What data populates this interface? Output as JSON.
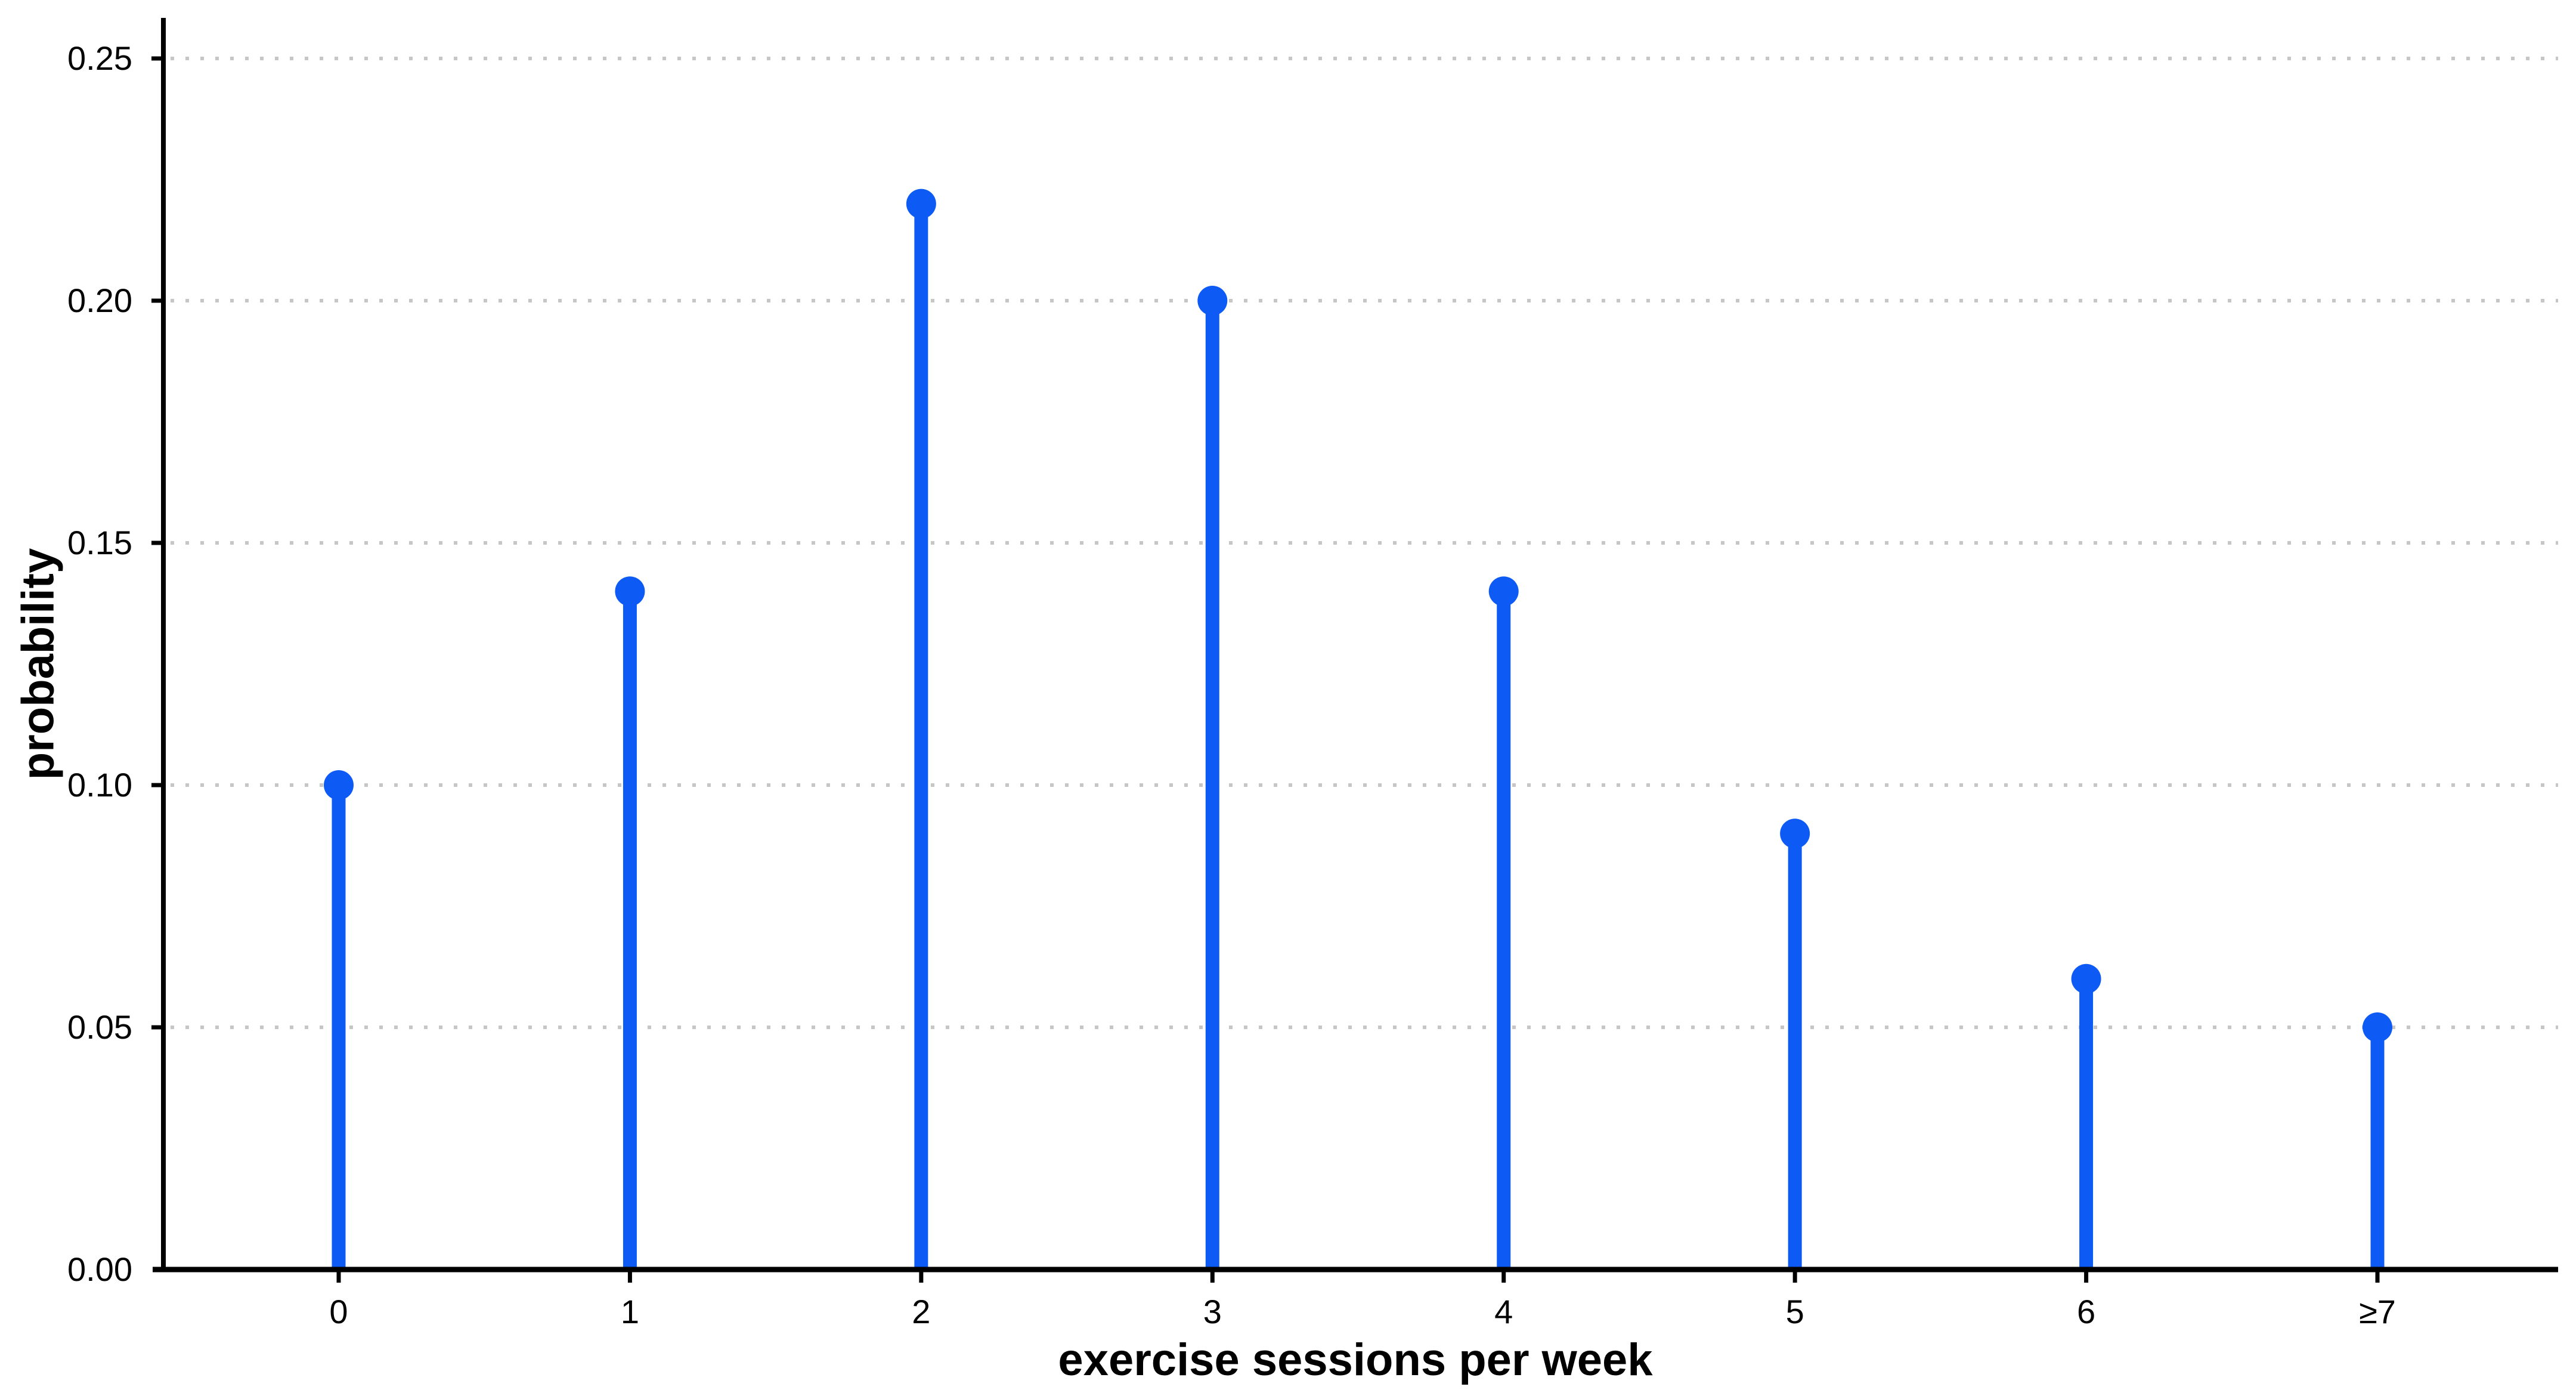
{
  "chart_data": {
    "type": "stem",
    "title": "",
    "xlabel": "exercise sessions per week",
    "ylabel": "probability",
    "categories": [
      "0",
      "1",
      "2",
      "3",
      "4",
      "5",
      "6",
      "≥7"
    ],
    "values": [
      0.1,
      0.14,
      0.22,
      0.2,
      0.14,
      0.09,
      0.06,
      0.05
    ],
    "ylim": [
      0,
      0.25
    ],
    "yticks": [
      0.0,
      0.05,
      0.1,
      0.15,
      0.2,
      0.25
    ],
    "ytick_labels": [
      "0.00",
      "0.05",
      "0.10",
      "0.15",
      "0.20",
      "0.25"
    ],
    "grid": "horizontal-dotted",
    "legend": "none",
    "colors": {
      "stem": "#0d5af5",
      "marker": "#0d5af5",
      "axis": "#000000",
      "gridline": "#c6c6c6",
      "text": "#000000",
      "background": "#ffffff"
    }
  }
}
